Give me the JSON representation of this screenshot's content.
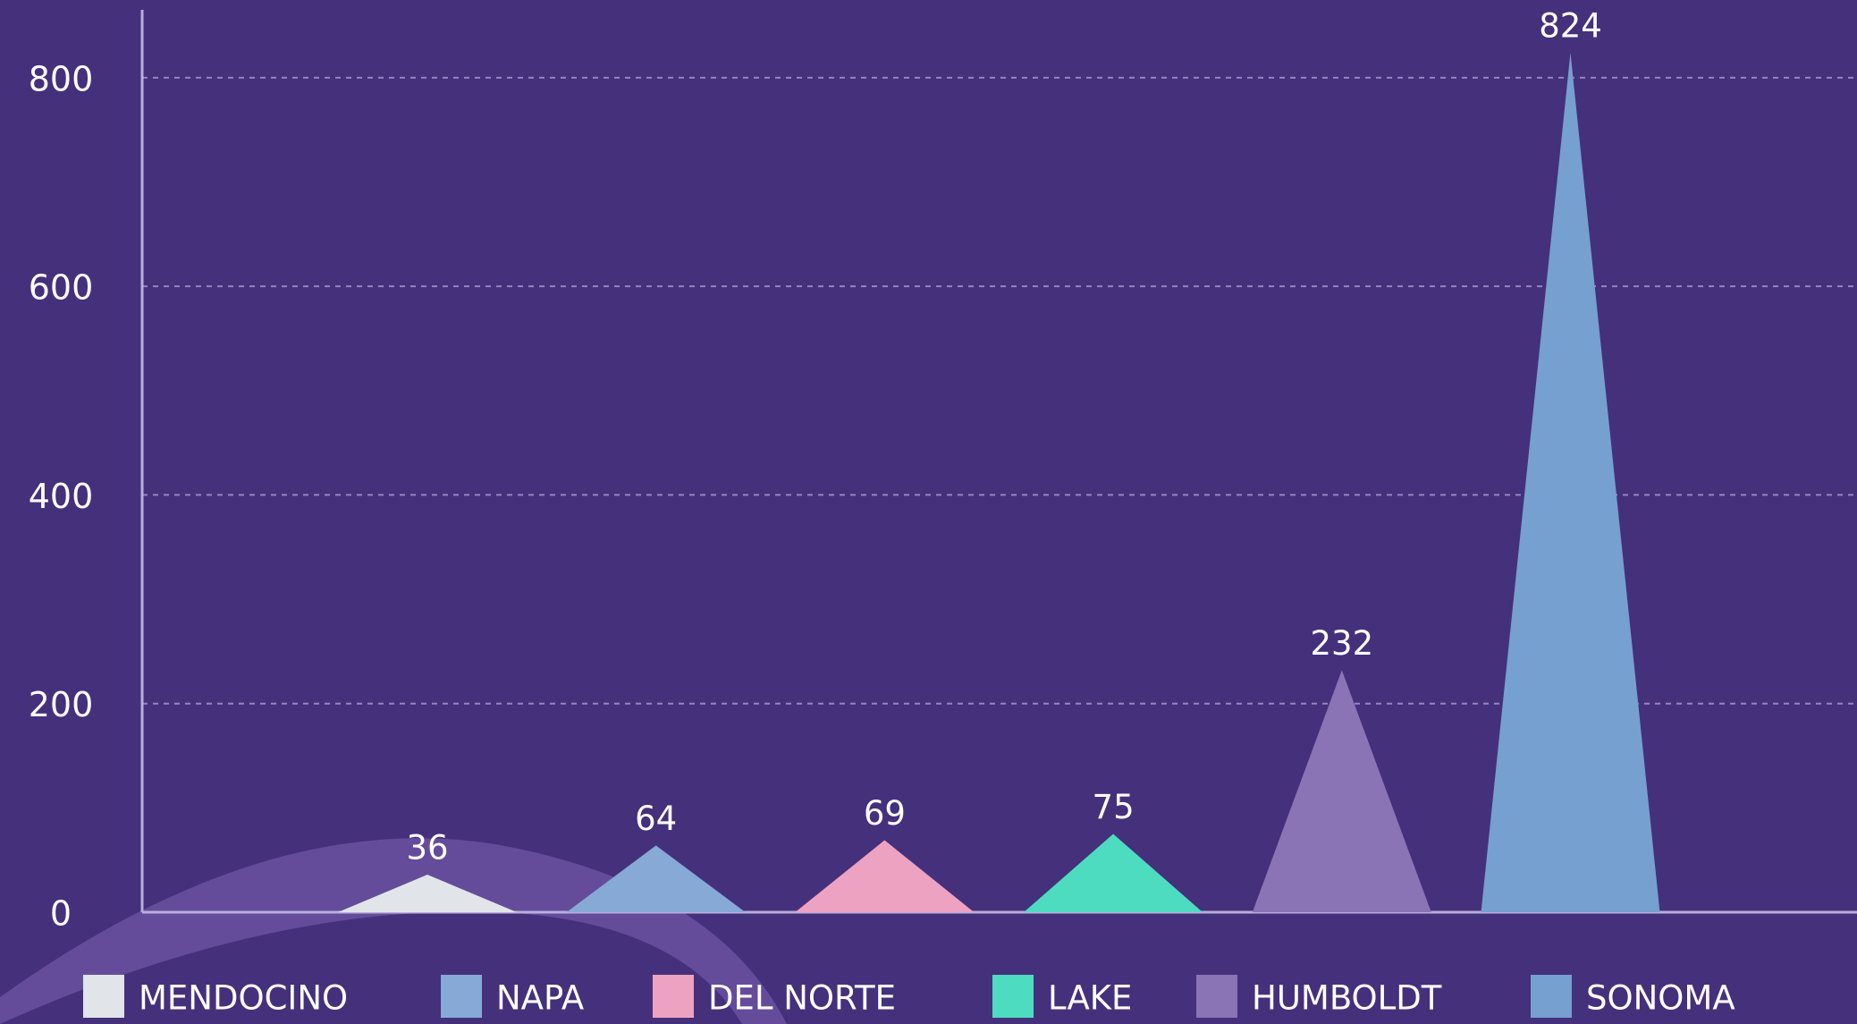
{
  "chart_data": {
    "type": "triangle-bar",
    "categories": [
      "MENDOCINO",
      "NAPA",
      "DEL NORTE",
      "LAKE",
      "HUMBOLDT",
      "SONOMA"
    ],
    "values": [
      36,
      64,
      69,
      75,
      232,
      824
    ],
    "colors": [
      "#e1e5ea",
      "#86a9d6",
      "#eea2c1",
      "#4ddcc0",
      "#8a74b6",
      "#76a0cf"
    ],
    "ylim": [
      0,
      865
    ],
    "yticks": [
      0,
      200,
      400,
      600,
      800
    ],
    "grid": true
  }
}
